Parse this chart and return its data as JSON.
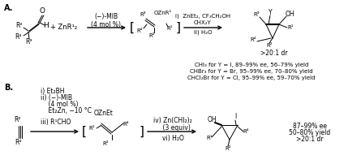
{
  "figsize": [
    4.29,
    2.02
  ],
  "dpi": 100,
  "bg_color": "#ffffff",
  "yields_A": [
    "CHI₃ for Y = I, 89–99% ee, 56–79% yield",
    "CHBr₃ for Y = Br, 95–99% ee, 70–80% yield",
    "CHCl₂Br for Y = Cl, 95–99% ee, 59–70% yield"
  ],
  "yields_B": [
    "87–99% ee",
    "50–80% yield",
    ">20:1 dr"
  ]
}
